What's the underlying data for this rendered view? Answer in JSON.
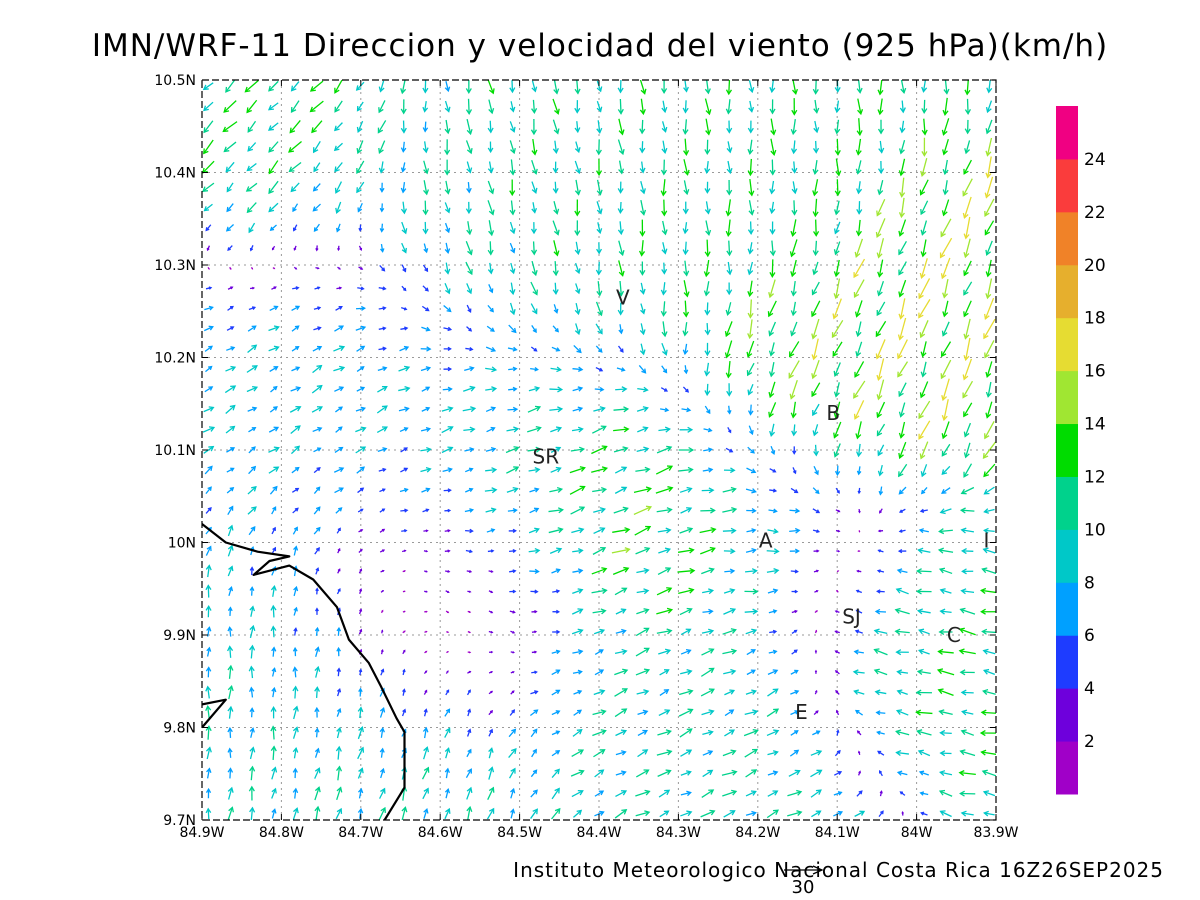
{
  "header": {
    "title": "IMN/WRF-11 Direccion y velocidad del viento (925 hPa)(km/h)"
  },
  "footer": {
    "credit": "Instituto Meteorologico Nacional Costa Rica 16Z26SEP2025",
    "reference_vector_label": "30",
    "reference_vector_speed": 30
  },
  "map": {
    "lon_range": [
      -84.9,
      -83.9
    ],
    "lat_range": [
      9.7,
      10.5
    ],
    "lon_ticks": [
      {
        "v": -84.9,
        "label": "84.9W"
      },
      {
        "v": -84.8,
        "label": "84.8W"
      },
      {
        "v": -84.7,
        "label": "84.7W"
      },
      {
        "v": -84.6,
        "label": "84.6W"
      },
      {
        "v": -84.5,
        "label": "84.5W"
      },
      {
        "v": -84.4,
        "label": "84.4W"
      },
      {
        "v": -84.3,
        "label": "84.3W"
      },
      {
        "v": -84.2,
        "label": "84.2W"
      },
      {
        "v": -84.1,
        "label": "84.1W"
      },
      {
        "v": -84.0,
        "label": "84W"
      },
      {
        "v": -83.9,
        "label": "83.9W"
      }
    ],
    "lat_ticks": [
      {
        "v": 9.7,
        "label": "9.7N"
      },
      {
        "v": 9.8,
        "label": "9.8N"
      },
      {
        "v": 9.9,
        "label": "9.9N"
      },
      {
        "v": 10.0,
        "label": "10N"
      },
      {
        "v": 10.1,
        "label": "10.1N"
      },
      {
        "v": 10.2,
        "label": "10.2N"
      },
      {
        "v": 10.3,
        "label": "10.3N"
      },
      {
        "v": 10.4,
        "label": "10.4N"
      },
      {
        "v": 10.5,
        "label": "10.5N"
      }
    ],
    "grid": true,
    "coastline": [
      [
        [
          -84.9,
          10.02
        ],
        [
          -84.87,
          10.0
        ],
        [
          -84.83,
          9.99
        ],
        [
          -84.79,
          9.985
        ],
        [
          -84.815,
          9.98
        ],
        [
          -84.835,
          9.965
        ],
        [
          -84.79,
          9.975
        ],
        [
          -84.76,
          9.96
        ],
        [
          -84.73,
          9.93
        ],
        [
          -84.715,
          9.895
        ],
        [
          -84.69,
          9.87
        ],
        [
          -84.675,
          9.845
        ],
        [
          -84.655,
          9.81
        ],
        [
          -84.645,
          9.795
        ],
        [
          -84.645,
          9.735
        ],
        [
          -84.67,
          9.7
        ]
      ],
      [
        [
          -84.9,
          9.825
        ],
        [
          -84.87,
          9.83
        ],
        [
          -84.9,
          9.8
        ]
      ]
    ],
    "place_labels": [
      {
        "label": "V",
        "lon": -84.37,
        "lat": 10.265
      },
      {
        "label": "SR",
        "lon": -84.467,
        "lat": 10.093
      },
      {
        "label": "B",
        "lon": -84.105,
        "lat": 10.14
      },
      {
        "label": "A",
        "lon": -84.19,
        "lat": 10.002
      },
      {
        "label": "I",
        "lon": -83.912,
        "lat": 10.002
      },
      {
        "label": "SJ",
        "lon": -84.082,
        "lat": 9.92
      },
      {
        "label": "C",
        "lon": -83.953,
        "lat": 9.9
      },
      {
        "label": "E",
        "lon": -84.145,
        "lat": 9.817
      }
    ]
  },
  "colorbar": {
    "levels": [
      "2",
      "4",
      "6",
      "8",
      "10",
      "12",
      "14",
      "16",
      "18",
      "20",
      "22",
      "24"
    ],
    "colors": [
      "#a000c8",
      "#6e00dc",
      "#1e3cff",
      "#00a0ff",
      "#00c8c8",
      "#00d28c",
      "#00dc00",
      "#a0e632",
      "#e6dc32",
      "#e6af2d",
      "#f08228",
      "#fa3c3c",
      "#f00082"
    ]
  },
  "chart_data": {
    "type": "vector-field",
    "title": "IMN/WRF-11 Direccion y velocidad del viento (925 hPa)(km/h)",
    "units": "km/h",
    "xlim": [
      -84.9,
      -83.9
    ],
    "ylim": [
      9.7,
      10.5
    ],
    "description_of_regimes": [
      {
        "region": "NW corner",
        "direction_to": "SW",
        "speed": 12
      },
      {
        "region": "west Pacific sector",
        "direction_to": "N",
        "speed": 8
      },
      {
        "region": "north central",
        "direction_to": "S",
        "speed": 10
      },
      {
        "region": "NE sector",
        "direction_to": "SW",
        "speed": 16
      },
      {
        "region": "central valley",
        "direction_to": "E",
        "speed": 9
      },
      {
        "region": "south east",
        "direction_to": "W",
        "speed": 11
      }
    ]
  }
}
